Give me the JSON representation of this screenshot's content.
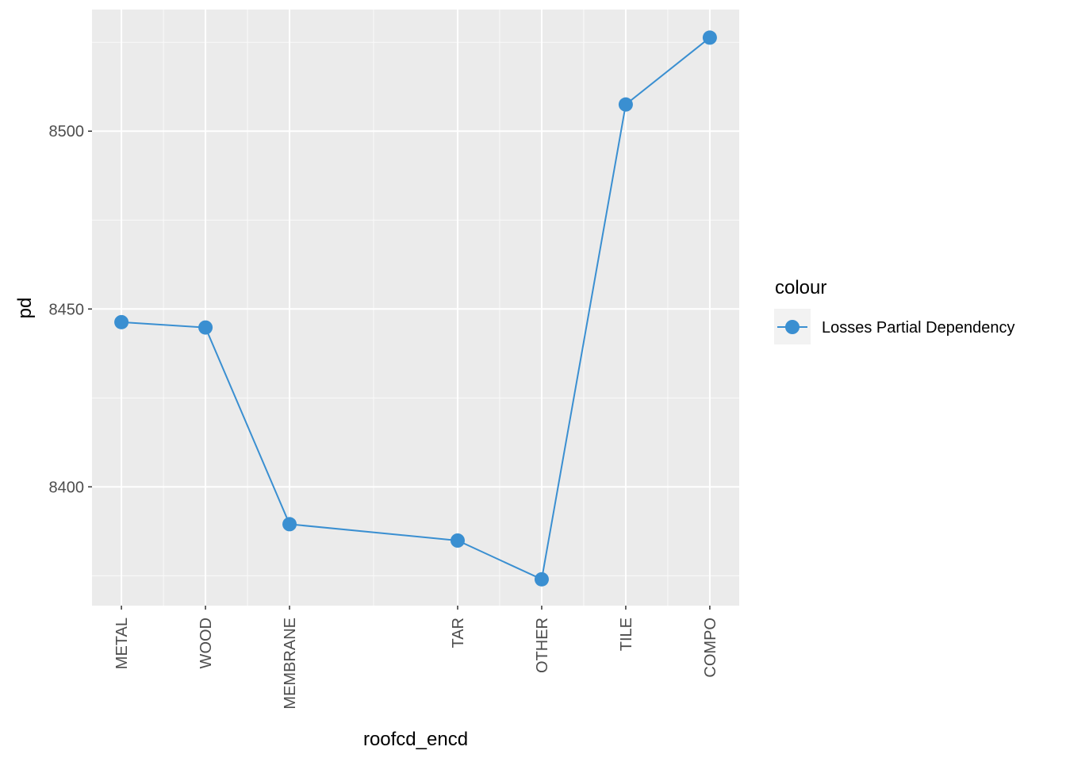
{
  "chart_data": {
    "type": "line",
    "xlabel": "roofcd_encd",
    "ylabel": "pd",
    "x_positions": [
      1,
      2,
      3,
      5,
      6,
      7,
      8
    ],
    "xlim": [
      0.65,
      8.35
    ],
    "ylim": [
      8366.6,
      8534.2
    ],
    "y_ticks": [
      8400,
      8450,
      8500
    ],
    "y_minor_ticks": [
      8375,
      8425,
      8475,
      8525
    ],
    "grid": true,
    "legend_position": "right",
    "legend_title": "colour",
    "series": [
      {
        "name": "Losses Partial Dependency",
        "color": "#3a8fd1",
        "categories": [
          "METAL",
          "WOOD",
          "MEMBRANE",
          "TAR",
          "OTHER",
          "TILE",
          "COMPO"
        ],
        "values": [
          8446.3,
          8444.8,
          8389.5,
          8384.9,
          8374.0,
          8507.5,
          8526.3
        ]
      }
    ]
  }
}
